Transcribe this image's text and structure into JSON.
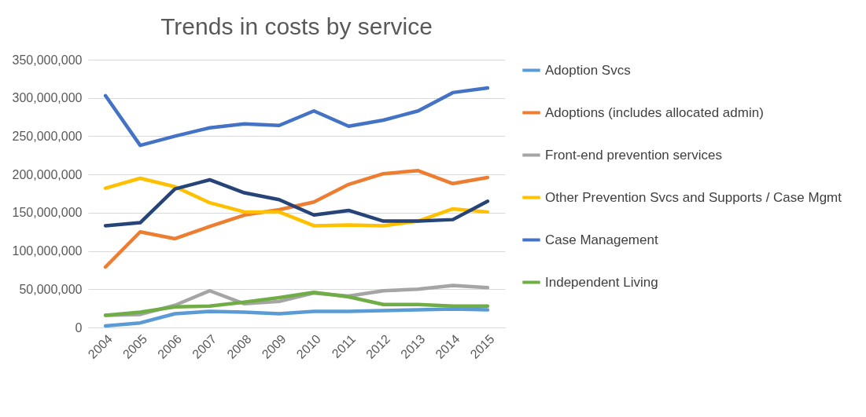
{
  "chart_data": {
    "type": "line",
    "title": "Trends in costs by service",
    "categories": [
      "2004",
      "2005",
      "2006",
      "2007",
      "2008",
      "2009",
      "2010",
      "2011",
      "2012",
      "2013",
      "2014",
      "2015"
    ],
    "series": [
      {
        "name": "Adoption Svcs",
        "color": "#5b9bd5",
        "values": [
          2000000,
          6000000,
          18000000,
          21000000,
          20000000,
          18000000,
          21000000,
          21000000,
          22000000,
          23000000,
          24000000,
          23000000
        ]
      },
      {
        "name": "Adoptions (includes allocated admin)",
        "color": "#ed7d31",
        "values": [
          79000000,
          125000000,
          116000000,
          132000000,
          147000000,
          154000000,
          164000000,
          187000000,
          201000000,
          205000000,
          188000000,
          196000000
        ]
      },
      {
        "name": "Front-end prevention services",
        "color": "#a5a5a5",
        "values": [
          16000000,
          17000000,
          29000000,
          48000000,
          31000000,
          34000000,
          45000000,
          41000000,
          48000000,
          50000000,
          55000000,
          52000000
        ]
      },
      {
        "name": "Other Prevention Svcs and Supports / Case Mgmt",
        "color": "#ffc000",
        "values": [
          182000000,
          195000000,
          184000000,
          163000000,
          151000000,
          151000000,
          133000000,
          134000000,
          133000000,
          139000000,
          155000000,
          151000000
        ]
      },
      {
        "name": "Case Management",
        "color": "#4472c4",
        "values": [
          303000000,
          238000000,
          250000000,
          261000000,
          266000000,
          264000000,
          283000000,
          263000000,
          271000000,
          283000000,
          307000000,
          313000000
        ]
      },
      {
        "name": "Independent Living",
        "color": "#70ad47",
        "values": [
          16000000,
          20000000,
          27000000,
          28000000,
          33000000,
          39000000,
          46000000,
          40000000,
          30000000,
          30000000,
          28000000,
          28000000
        ]
      },
      {
        "color": "#264478",
        "values": [
          133000000,
          137000000,
          181000000,
          193000000,
          176000000,
          167000000,
          147000000,
          153000000,
          139000000,
          139000000,
          141000000,
          165000000
        ]
      }
    ],
    "ylim": [
      0,
      350000000
    ],
    "yticks": [
      0,
      {
        "value": 50000000,
        "label": "50,000,000"
      },
      {
        "value": 100000000,
        "label": "100,000,000"
      },
      {
        "value": 150000000,
        "label": "150,000,000"
      },
      {
        "value": 200000000,
        "label": "200,000,000"
      },
      {
        "value": 250000000,
        "label": "250,000,000"
      },
      {
        "value": 300000000,
        "label": "300,000,000"
      },
      {
        "value": 350000000,
        "label": "350,000,000"
      }
    ],
    "grid": "y",
    "legend": "right",
    "line_style": "solid",
    "marker": "none"
  }
}
